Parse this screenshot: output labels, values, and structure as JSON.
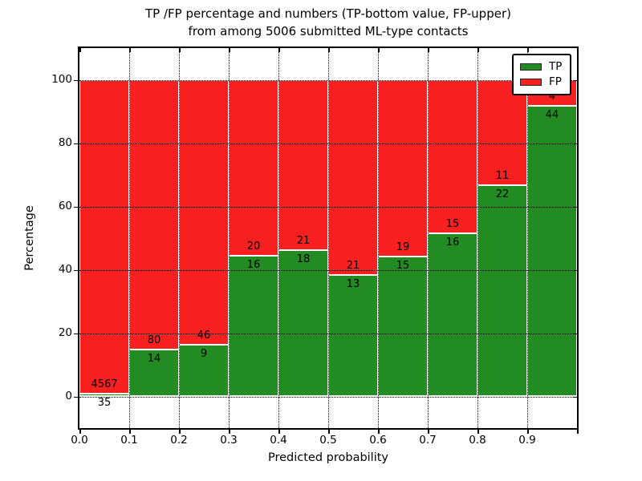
{
  "title": {
    "line1": "TP /FP percentage and numbers (TP-bottom value, FP-upper)",
    "line2": "from among 5006 submitted ML-type contacts"
  },
  "chart_data": {
    "type": "bar",
    "subtype": "stacked-percentage-histogram",
    "title": "TP /FP percentage and numbers (TP-bottom value, FP-upper)\nfrom among 5006 submitted ML-type contacts",
    "xlabel": "Predicted probability",
    "ylabel": "Percentage",
    "xlim": [
      0.0,
      1.0
    ],
    "ylim": [
      -10,
      110
    ],
    "x_tick_labels": [
      "0.0",
      "0.1",
      "0.2",
      "0.3",
      "0.4",
      "0.5",
      "0.6",
      "0.7",
      "0.8",
      "0.9"
    ],
    "x_tick_values": [
      0.0,
      0.1,
      0.2,
      0.3,
      0.4,
      0.5,
      0.6,
      0.7,
      0.8,
      0.9
    ],
    "y_tick_labels": [
      "0",
      "20",
      "40",
      "60",
      "80",
      "100"
    ],
    "y_tick_values": [
      0,
      20,
      40,
      60,
      80,
      100
    ],
    "grid": true,
    "grid_style": "dotted",
    "total_contacts": 5006,
    "legend": {
      "position": "upper right",
      "entries": [
        {
          "label": "TP",
          "color": "#228b22"
        },
        {
          "label": "FP",
          "color": "#f92020"
        }
      ]
    },
    "bins": [
      {
        "x_start": 0.0,
        "x_end": 0.1,
        "tp": 35,
        "fp": 4567
      },
      {
        "x_start": 0.1,
        "x_end": 0.2,
        "tp": 14,
        "fp": 80
      },
      {
        "x_start": 0.2,
        "x_end": 0.3,
        "tp": 9,
        "fp": 46
      },
      {
        "x_start": 0.3,
        "x_end": 0.4,
        "tp": 16,
        "fp": 20
      },
      {
        "x_start": 0.4,
        "x_end": 0.5,
        "tp": 18,
        "fp": 21
      },
      {
        "x_start": 0.5,
        "x_end": 0.6,
        "tp": 13,
        "fp": 21
      },
      {
        "x_start": 0.6,
        "x_end": 0.7,
        "tp": 15,
        "fp": 19
      },
      {
        "x_start": 0.7,
        "x_end": 0.8,
        "tp": 16,
        "fp": 15
      },
      {
        "x_start": 0.8,
        "x_end": 0.9,
        "tp": 22,
        "fp": 11
      },
      {
        "x_start": 0.9,
        "x_end": 1.0,
        "tp": 44,
        "fp": 4
      }
    ]
  },
  "colors": {
    "tp_green": "#228b22",
    "fp_red": "#f92020",
    "grid_black": "#000000",
    "bar_edge_white": "#ffffff",
    "background": "#ffffff"
  }
}
